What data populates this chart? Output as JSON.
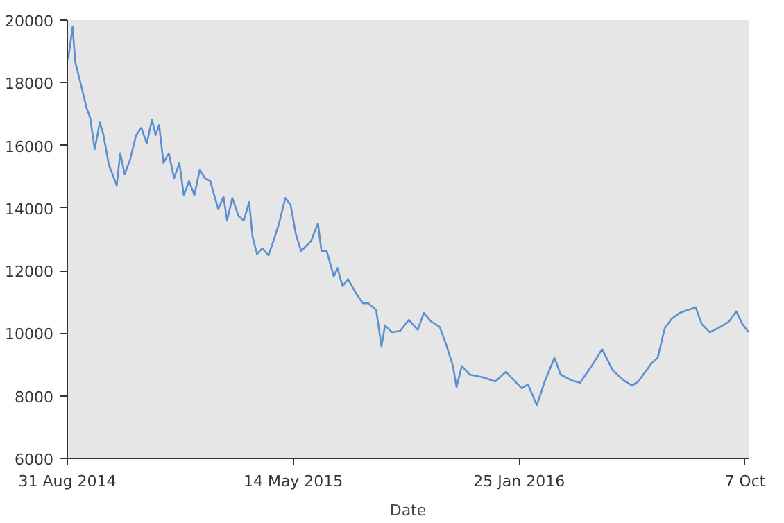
{
  "chart_data": {
    "type": "line",
    "xlabel": "Date",
    "x": [
      "2014-09-01",
      "2014-09-06",
      "2014-09-09",
      "2014-09-15",
      "2014-09-22",
      "2014-09-26",
      "2014-10-01",
      "2014-10-07",
      "2014-10-11",
      "2014-10-17",
      "2014-10-26",
      "2014-10-30",
      "2014-11-04",
      "2014-11-10",
      "2014-11-17",
      "2014-11-23",
      "2014-11-29",
      "2014-12-05",
      "2014-12-09",
      "2014-12-13",
      "2014-12-18",
      "2014-12-24",
      "2014-12-30",
      "2015-01-05",
      "2015-01-10",
      "2015-01-16",
      "2015-01-22",
      "2015-01-28",
      "2015-02-03",
      "2015-02-09",
      "2015-02-18",
      "2015-02-24",
      "2015-02-28",
      "2015-03-06",
      "2015-03-13",
      "2015-03-19",
      "2015-03-25",
      "2015-03-29",
      "2015-04-03",
      "2015-04-09",
      "2015-04-16",
      "2015-04-22",
      "2015-04-28",
      "2015-05-05",
      "2015-05-11",
      "2015-05-17",
      "2015-05-23",
      "2015-05-29",
      "2015-06-03",
      "2015-06-11",
      "2015-06-15",
      "2015-06-21",
      "2015-06-29",
      "2015-07-03",
      "2015-07-09",
      "2015-07-15",
      "2015-07-24",
      "2015-08-01",
      "2015-08-07",
      "2015-08-16",
      "2015-08-22",
      "2015-08-26",
      "2015-09-03",
      "2015-09-12",
      "2015-09-22",
      "2015-10-02",
      "2015-10-09",
      "2015-10-17",
      "2015-10-27",
      "2015-11-04",
      "2015-11-11",
      "2015-11-15",
      "2015-11-21",
      "2015-11-30",
      "2015-12-15",
      "2015-12-29",
      "2016-01-10",
      "2016-01-19",
      "2016-01-28",
      "2016-02-04",
      "2016-02-14",
      "2016-02-23",
      "2016-03-05",
      "2016-03-12",
      "2016-03-24",
      "2016-04-03",
      "2016-04-16",
      "2016-04-28",
      "2016-05-10",
      "2016-05-22",
      "2016-06-01",
      "2016-06-08",
      "2016-06-23",
      "2016-06-30",
      "2016-07-08",
      "2016-07-16",
      "2016-07-25",
      "2016-08-03",
      "2016-08-12",
      "2016-08-19",
      "2016-08-28",
      "2016-09-12",
      "2016-09-19",
      "2016-09-27",
      "2016-10-04",
      "2016-10-11"
    ],
    "series": [
      {
        "color": "#5b8fd0",
        "values": [
          18750,
          19780,
          18660,
          17990,
          17180,
          16870,
          15880,
          16730,
          16330,
          15390,
          14720,
          15750,
          15080,
          15530,
          16330,
          16560,
          16060,
          16820,
          16330,
          16650,
          15440,
          15750,
          14950,
          15440,
          14410,
          14860,
          14410,
          15210,
          14950,
          14860,
          13960,
          14360,
          13600,
          14320,
          13740,
          13600,
          14190,
          13070,
          12530,
          12710,
          12490,
          12980,
          13510,
          14320,
          14100,
          13160,
          12620,
          12800,
          12930,
          13510,
          12620,
          12620,
          11810,
          12080,
          11500,
          11730,
          11280,
          10960,
          10960,
          10740,
          9580,
          10250,
          10030,
          10070,
          10430,
          10110,
          10650,
          10380,
          10200,
          9580,
          8950,
          8280,
          8950,
          8680,
          8590,
          8460,
          8770,
          8500,
          8240,
          8370,
          7700,
          8460,
          9220,
          8680,
          8500,
          8420,
          8950,
          9490,
          8820,
          8500,
          8330,
          8460,
          9040,
          9220,
          10160,
          10470,
          10650,
          10740,
          10830,
          10290,
          10030,
          10250,
          10380,
          10700,
          10290,
          10030
        ]
      }
    ],
    "xlim": [
      "2014-08-31",
      "2016-10-11"
    ],
    "xticks": [
      {
        "value": "2014-08-31",
        "label": "31 Aug 2014"
      },
      {
        "value": "2015-05-14",
        "label": "14 May 2015"
      },
      {
        "value": "2016-01-25",
        "label": "25 Jan 2016"
      },
      {
        "value": "2016-10-07",
        "label": "7 Oct"
      }
    ],
    "ylim": [
      6000,
      20000
    ],
    "yticks": [
      6000,
      8000,
      10000,
      12000,
      14000,
      16000,
      18000,
      20000
    ]
  }
}
